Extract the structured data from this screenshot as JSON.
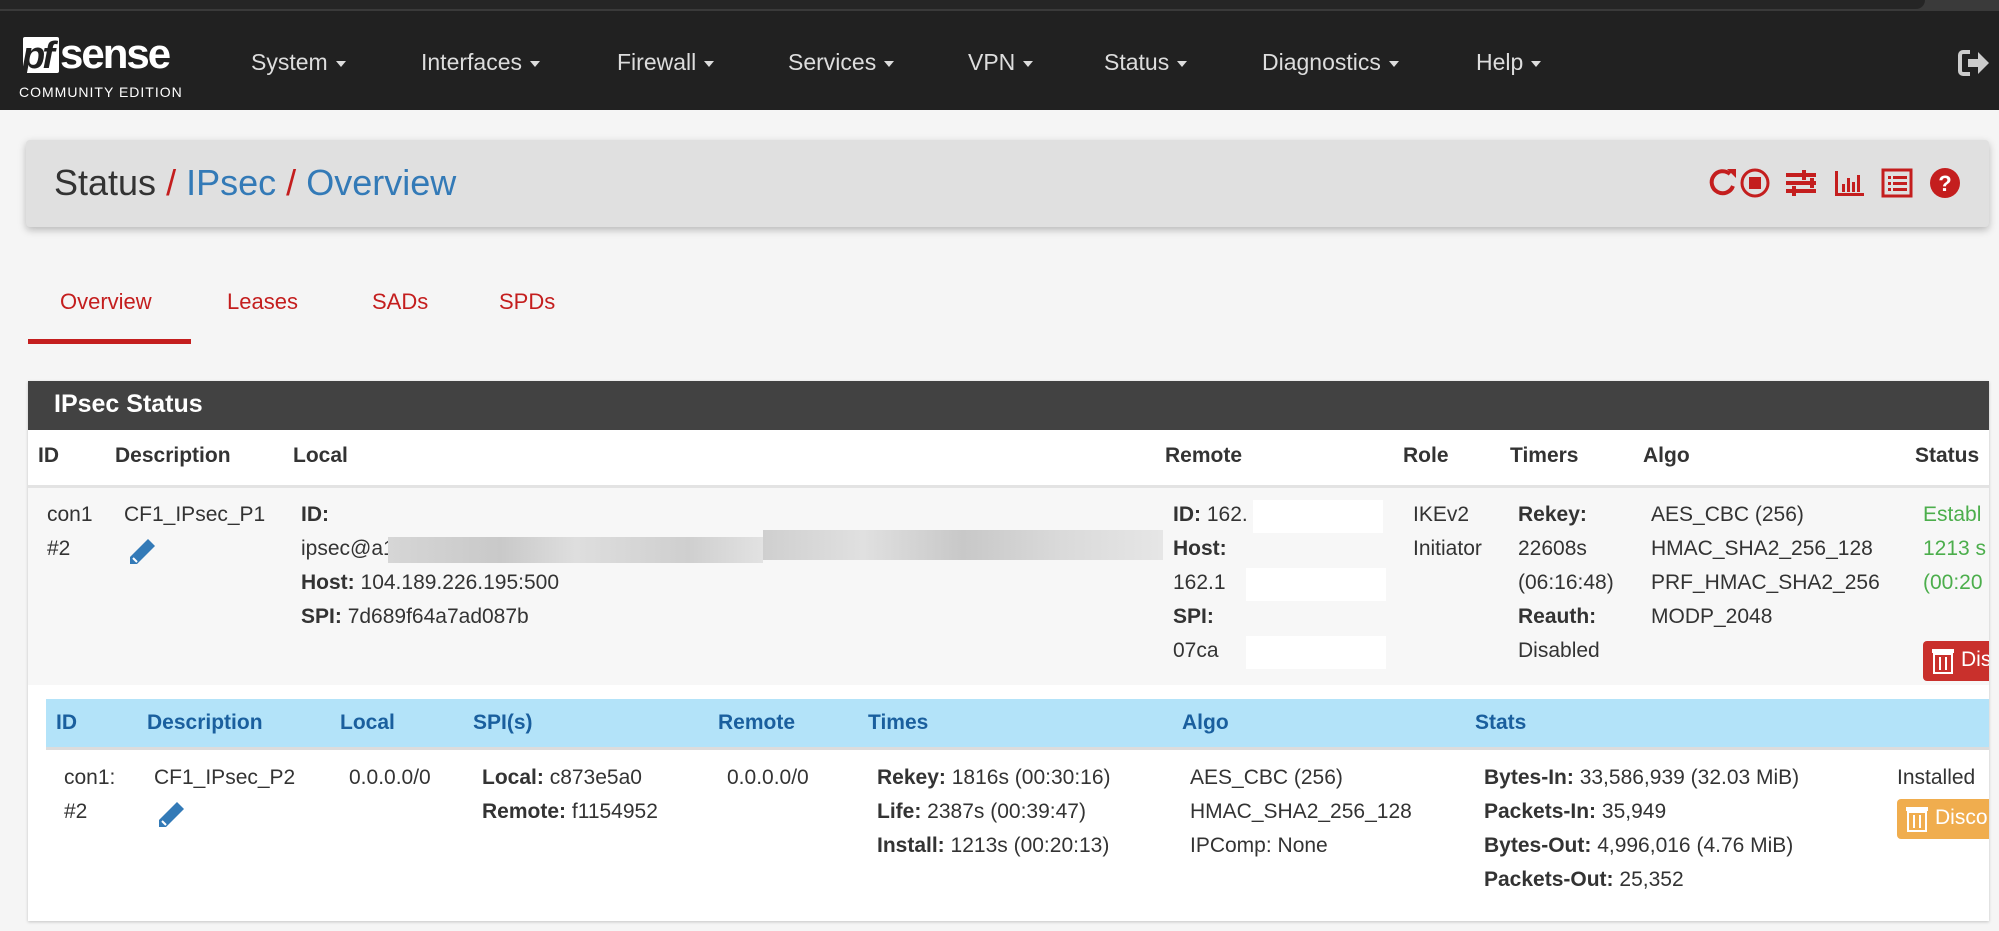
{
  "brand": {
    "logo_text": "pfsense",
    "edition": "COMMUNITY EDITION"
  },
  "nav": {
    "items": [
      "System",
      "Interfaces",
      "Firewall",
      "Services",
      "VPN",
      "Status",
      "Diagnostics",
      "Help"
    ]
  },
  "breadcrumb": {
    "root": "Status",
    "section": "IPsec",
    "page": "Overview",
    "separator": "/"
  },
  "header_icons": [
    "refresh-icon",
    "stop-icon",
    "settings-sliders-icon",
    "chart-icon",
    "log-list-icon",
    "help-icon"
  ],
  "tabs": [
    {
      "label": "Overview",
      "active": true
    },
    {
      "label": "Leases"
    },
    {
      "label": "SADs"
    },
    {
      "label": "SPDs"
    }
  ],
  "panel": {
    "title": "IPsec Status",
    "p1_columns": [
      "ID",
      "Description",
      "Local",
      "Remote",
      "Role",
      "Timers",
      "Algo",
      "Status"
    ],
    "p1_row": {
      "id1": "con1",
      "id2": "#2",
      "description": "CF1_IPsec_P1",
      "local_id_label": "ID:",
      "local_id_value": "ipsec@a1c",
      "local_host_label": "Host:",
      "local_host": "104.189.226.195:500",
      "local_spi_label": "SPI:",
      "local_spi": "7d689f64a7ad087b",
      "remote_id_label": "ID:",
      "remote_id": "162.",
      "remote_host_label": "Host:",
      "remote_host": "162.1",
      "remote_spi_label": "SPI:",
      "remote_spi": "07ca",
      "role1": "IKEv2",
      "role2": "Initiator",
      "rekey_label": "Rekey:",
      "rekey": "22608s",
      "rekey_hms": "(06:16:48)",
      "reauth_label": "Reauth:",
      "reauth": "Disabled",
      "algo": [
        "AES_CBC (256)",
        "HMAC_SHA2_256_128",
        "PRF_HMAC_SHA2_256",
        "MODP_2048"
      ],
      "status1": "Establ",
      "status2": "1213 s",
      "status3": "(00:20",
      "disconnect_label": "Dis"
    },
    "p2_columns": [
      "ID",
      "Description",
      "Local",
      "SPI(s)",
      "Remote",
      "Times",
      "Algo",
      "Stats"
    ],
    "p2_row": {
      "id1": "con1:",
      "id2": "#2",
      "description": "CF1_IPsec_P2",
      "local": "0.0.0.0/0",
      "spi_local_label": "Local:",
      "spi_local": "c873e5a0",
      "spi_remote_label": "Remote:",
      "spi_remote": "f1154952",
      "remote": "0.0.0.0/0",
      "rekey_label": "Rekey:",
      "rekey": "1816s (00:30:16)",
      "life_label": "Life:",
      "life": "2387s (00:39:47)",
      "install_label": "Install:",
      "install": "1213s (00:20:13)",
      "algo": [
        "AES_CBC (256)",
        "HMAC_SHA2_256_128",
        "IPComp: None"
      ],
      "bytes_in_label": "Bytes-In:",
      "bytes_in": "33,586,939 (32.03 MiB)",
      "packets_in_label": "Packets-In:",
      "packets_in": "35,949",
      "bytes_out_label": "Bytes-Out:",
      "bytes_out": "4,996,016 (4.76 MiB)",
      "packets_out_label": "Packets-Out:",
      "packets_out": "25,352",
      "status": "Installed",
      "disconnect_label": "Disco"
    }
  },
  "colors": {
    "nav_bg": "#212121",
    "accent_red": "#c41e1e",
    "link_blue": "#337ab7",
    "child_header_bg": "#b3e3f9",
    "established_green": "#4cae4c",
    "warning_orange": "#f0ad4e",
    "danger_red": "#d9534f"
  }
}
